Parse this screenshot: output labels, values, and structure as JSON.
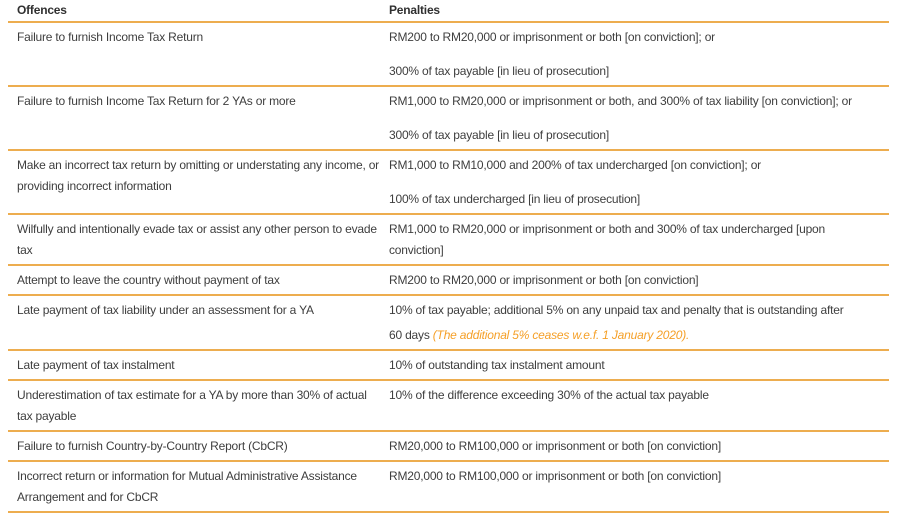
{
  "colors": {
    "divider": "#edad4f",
    "note_text": "#f5a028",
    "body_text": "#3e3e3e",
    "header_text": "#303030"
  },
  "table": {
    "headers": {
      "offences": "Offences",
      "penalties": "Penalties"
    },
    "rows": [
      {
        "offence": "Failure to furnish Income Tax Return",
        "penalties": [
          "RM200 to RM20,000 or imprisonment or both [on conviction]; or",
          "300% of tax payable [in lieu of prosecution]"
        ]
      },
      {
        "offence": "Failure to furnish Income Tax Return for 2 YAs or more",
        "penalties": [
          "RM1,000 to RM20,000 or imprisonment or both, and 300% of tax liability [on conviction]; or",
          "300% of tax payable [in lieu of prosecution]"
        ]
      },
      {
        "offence": "Make an incorrect tax return by omitting or understating any income, or providing incorrect information",
        "penalties": [
          "RM1,000 to RM10,000 and 200% of tax undercharged [on conviction]; or",
          "100% of tax undercharged [in lieu of prosecution]"
        ]
      },
      {
        "offence": "Wilfully and intentionally evade tax or assist any other person to evade tax",
        "penalties": [
          "RM1,000 to RM20,000 or imprisonment or both and 300% of tax undercharged [upon conviction]"
        ]
      },
      {
        "offence": "Attempt to leave the country without payment of tax",
        "penalties": [
          "RM200 to RM20,000 or imprisonment or both [on conviction]"
        ]
      },
      {
        "offence": "Late payment of tax liability under an assessment for a YA",
        "penalties": [
          "10% of tax payable; additional 5% on any unpaid tax and penalty that is outstanding after",
          "60 days "
        ],
        "penalty_note": "(The additional 5% ceases w.e.f. 1 January 2020)."
      },
      {
        "offence": "Late payment of tax instalment",
        "penalties": [
          "10% of outstanding tax instalment amount"
        ]
      },
      {
        "offence": "Underestimation of tax estimate for a YA by more than 30% of actual tax payable",
        "penalties": [
          "10% of the difference exceeding 30% of the actual tax payable"
        ]
      },
      {
        "offence": "Failure to furnish Country-by-Country Report (CbCR)",
        "penalties": [
          "RM20,000 to RM100,000 or imprisonment or both [on conviction]"
        ]
      },
      {
        "offence": "Incorrect return or information for Mutual Administrative Assistance Arrangement and for CbCR",
        "penalties": [
          "RM20,000 to RM100,000 or imprisonment or both [on conviction]"
        ]
      }
    ]
  }
}
